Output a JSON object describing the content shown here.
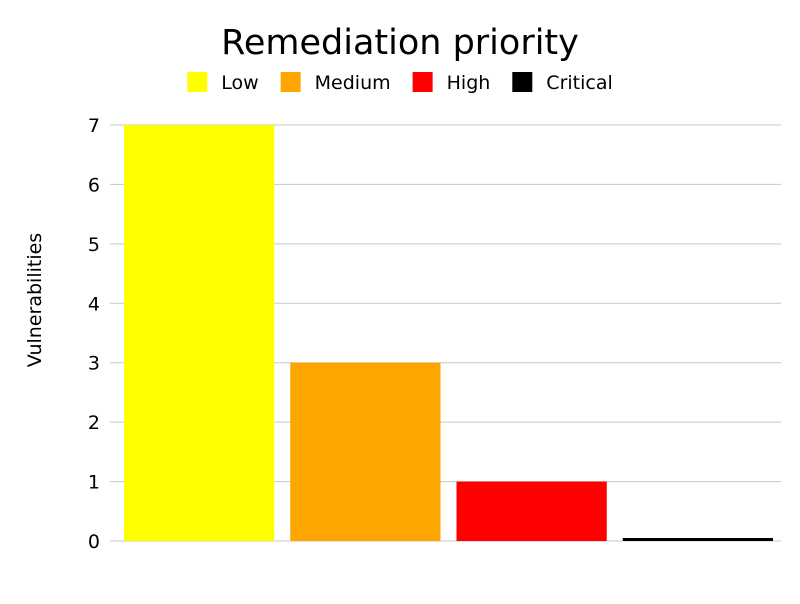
{
  "chart_data": {
    "type": "bar",
    "title": "Remediation priority",
    "ylabel": "Vulnerabilities",
    "xlabel": "",
    "categories": [
      "Low",
      "Medium",
      "High",
      "Critical"
    ],
    "values": [
      7,
      3,
      1,
      0
    ],
    "colors": [
      "#ffff00",
      "#ffa500",
      "#ff0000",
      "#000000"
    ],
    "ylim": [
      0,
      7
    ],
    "yticks": [
      0,
      1,
      2,
      3,
      4,
      5,
      6,
      7
    ],
    "grid": true,
    "legend": {
      "placement": "top-center",
      "entries": [
        {
          "label": "Low",
          "color": "#ffff00"
        },
        {
          "label": "Medium",
          "color": "#ffa500"
        },
        {
          "label": "High",
          "color": "#ff0000"
        },
        {
          "label": "Critical",
          "color": "#000000"
        }
      ]
    }
  }
}
